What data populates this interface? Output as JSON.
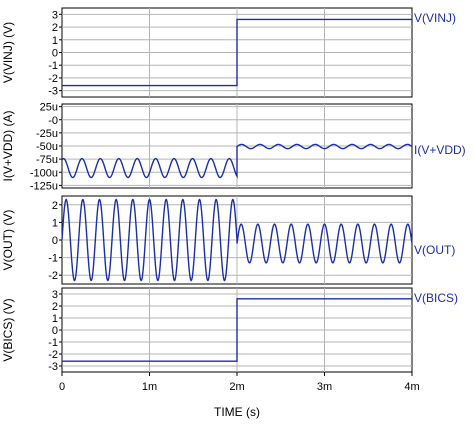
{
  "chart_data": {
    "type": "line",
    "xlabel": "TIME  (s)",
    "xlim": [
      0,
      4
    ],
    "x_ticks": [
      {
        "value": 0,
        "label": "0"
      },
      {
        "value": 1,
        "label": "1m"
      },
      {
        "value": 2,
        "label": "2m"
      },
      {
        "value": 3,
        "label": "3m"
      },
      {
        "value": 4,
        "label": "4m"
      }
    ],
    "line_color": "#1a2ea8",
    "grid": true,
    "panels": [
      {
        "ylabel": "V(VINJ)  (V)",
        "ylim": [
          -3.5,
          3.5
        ],
        "y_ticks": [
          {
            "value": 3,
            "label": "3"
          },
          {
            "value": 2,
            "label": "2"
          },
          {
            "value": 1,
            "label": "1"
          },
          {
            "value": 0,
            "label": "0"
          },
          {
            "value": -1,
            "label": "-1"
          },
          {
            "value": -2,
            "label": "-2"
          },
          {
            "value": -3,
            "label": "-3"
          }
        ],
        "series": [
          {
            "name": "V(VINJ)",
            "kind": "step",
            "points": [
              [
                0,
                -2.6
              ],
              [
                2,
                -2.6
              ],
              [
                2,
                2.6
              ],
              [
                4,
                2.6
              ]
            ]
          }
        ]
      },
      {
        "ylabel": "I(V+VDD)  (A)",
        "ylim": [
          -130,
          30
        ],
        "y_ticks": [
          {
            "value": 25,
            "label": "25u"
          },
          {
            "value": 0,
            "label": "-0"
          },
          {
            "value": -25,
            "label": "-25u"
          },
          {
            "value": -50,
            "label": "-50u"
          },
          {
            "value": -75,
            "label": "-75u"
          },
          {
            "value": -100,
            "label": "-100u"
          },
          {
            "value": -125,
            "label": "-125u"
          }
        ],
        "series": [
          {
            "name": "I(V+VDD)",
            "kind": "sine_segments",
            "segments": [
              {
                "x_start": 0,
                "x_end": 2,
                "center": -92,
                "amplitude": 18,
                "cycles": 9.5,
                "phase_deg": 60
              },
              {
                "x_start": 2,
                "x_end": 4,
                "center": -51,
                "amplitude": 4,
                "cycles": 9.5,
                "phase_deg": 0
              }
            ],
            "jump_from": -100
          }
        ]
      },
      {
        "ylabel": "V(OUT)  (V)",
        "ylim": [
          -2.5,
          2.5
        ],
        "y_ticks": [
          {
            "value": 2,
            "label": "2"
          },
          {
            "value": 1,
            "label": "1"
          },
          {
            "value": 0,
            "label": "0"
          },
          {
            "value": -1,
            "label": "-1"
          },
          {
            "value": -2,
            "label": "-2"
          }
        ],
        "series": [
          {
            "name": "V(OUT)",
            "kind": "sine_segments",
            "segments": [
              {
                "x_start": 0,
                "x_end": 2,
                "center": 0,
                "amplitude": 2.3,
                "cycles": 10.5,
                "phase_deg": 0
              },
              {
                "x_start": 2,
                "x_end": 4,
                "center": -0.2,
                "amplitude": 1.1,
                "cycles": 10.5,
                "phase_deg": 0
              }
            ]
          }
        ]
      },
      {
        "ylabel": "V(BICS)  (V)",
        "ylim": [
          -3.5,
          3.5
        ],
        "y_ticks": [
          {
            "value": 3,
            "label": "3"
          },
          {
            "value": 2,
            "label": "2"
          },
          {
            "value": 1,
            "label": "1"
          },
          {
            "value": 0,
            "label": "0"
          },
          {
            "value": -1,
            "label": "-1"
          },
          {
            "value": -2,
            "label": "-2"
          },
          {
            "value": -3,
            "label": "-3"
          }
        ],
        "series": [
          {
            "name": "V(BICS)",
            "kind": "step",
            "points": [
              [
                0,
                -2.6
              ],
              [
                2,
                -2.6
              ],
              [
                2,
                2.6
              ],
              [
                4,
                2.6
              ]
            ]
          }
        ]
      }
    ]
  }
}
